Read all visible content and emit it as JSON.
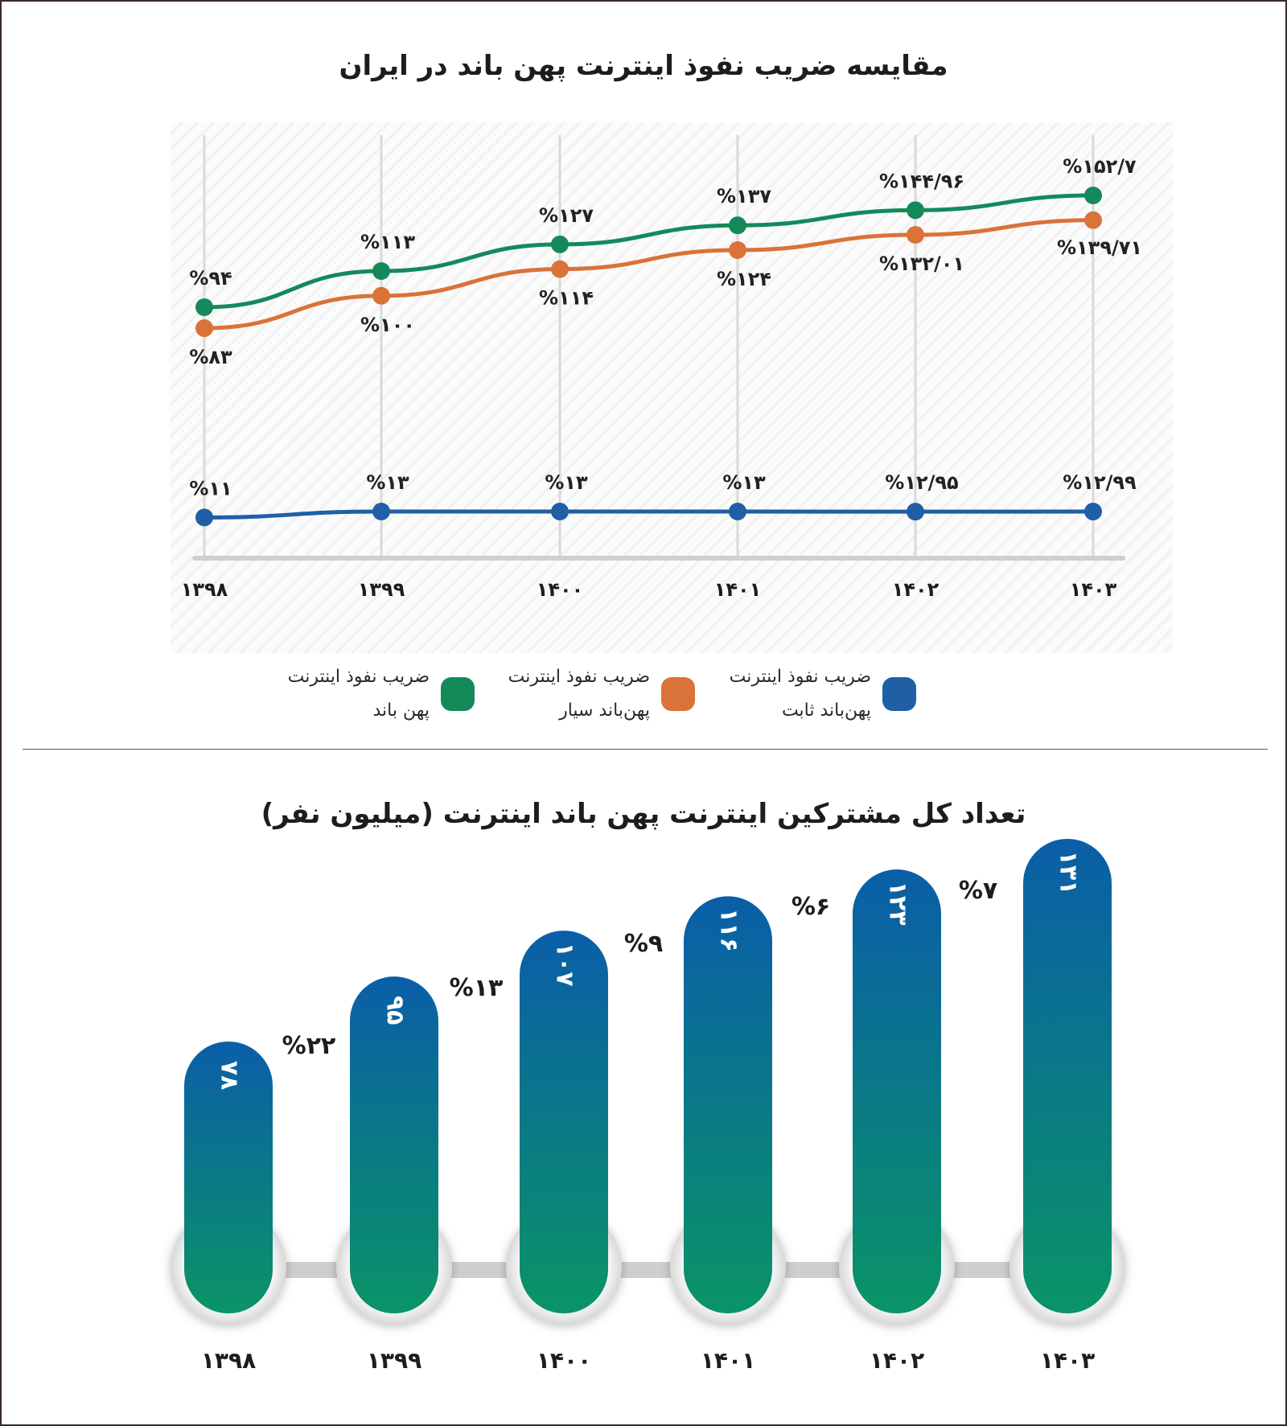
{
  "line_chart_title": "مقایسه ضریب نفوذ اینترنت پهن باند در ایران",
  "bar_chart_title": "تعداد کل مشترکین اینترنت پهن باند اینترنت (میلیون نفر)",
  "legend": [
    {
      "label": "ضریب نفوذ اینترنت پهن‌باند ثابت",
      "color": "#1f5fa6"
    },
    {
      "label": "ضریب نفوذ اینترنت پهن‌باند سیار",
      "color": "#d9733a"
    },
    {
      "label": "ضریب نفوذ اینترنت پهن باند",
      "color": "#148a5a"
    }
  ],
  "chart_data": [
    {
      "type": "line",
      "title": "مقایسه ضریب نفوذ اینترنت پهن باند در ایران",
      "categories": [
        "۱۳۹۸",
        "۱۳۹۹",
        "۱۴۰۰",
        "۱۴۰۱",
        "۱۴۰۲",
        "۱۴۰۳"
      ],
      "series": [
        {
          "name": "ضریب نفوذ اینترنت پهن باند",
          "color": "#148a5a",
          "values": [
            94,
            113,
            127,
            137,
            144.96,
            152.7
          ],
          "labels": [
            "%۹۴",
            "%۱۱۳",
            "%۱۲۷",
            "%۱۳۷",
            "%۱۴۴/۹۶",
            "%۱۵۲/۷"
          ]
        },
        {
          "name": "ضریب نفوذ اینترنت پهن‌باند سیار",
          "color": "#d9733a",
          "values": [
            83,
            100,
            114,
            124,
            132.01,
            139.71
          ],
          "labels": [
            "%۸۳",
            "%۱۰۰",
            "%۱۱۴",
            "%۱۲۴",
            "%۱۳۲/۰۱",
            "%۱۳۹/۷۱"
          ]
        },
        {
          "name": "ضریب نفوذ اینترنت پهن‌باند ثابت",
          "color": "#1f5fa6",
          "values": [
            11,
            13,
            13,
            13,
            12.95,
            12.99
          ],
          "labels": [
            "%۱۱",
            "%۱۳",
            "%۱۳",
            "%۱۳",
            "%۱۲/۹۵",
            "%۱۲/۹۹"
          ]
        }
      ],
      "grid": true,
      "legend_position": "bottom"
    },
    {
      "type": "bar",
      "title": "تعداد کل مشترکین اینترنت پهن باند اینترنت (میلیون نفر)",
      "categories": [
        "۱۳۹۸",
        "۱۳۹۹",
        "۱۴۰۰",
        "۱۴۰۱",
        "۱۴۰۲",
        "۱۴۰۳"
      ],
      "values": [
        78,
        95,
        107,
        116,
        123,
        131
      ],
      "value_labels": [
        "۷۸",
        "۹۵",
        "۱۰۷",
        "۱۱۶",
        "۱۲۳",
        "۱۳۱"
      ],
      "growth_labels": [
        "%۲۲",
        "%۱۳",
        "%۹",
        "%۶",
        "%۷"
      ],
      "colors": {
        "top": "#0a5ea8",
        "bottom": "#0a9466"
      }
    }
  ]
}
